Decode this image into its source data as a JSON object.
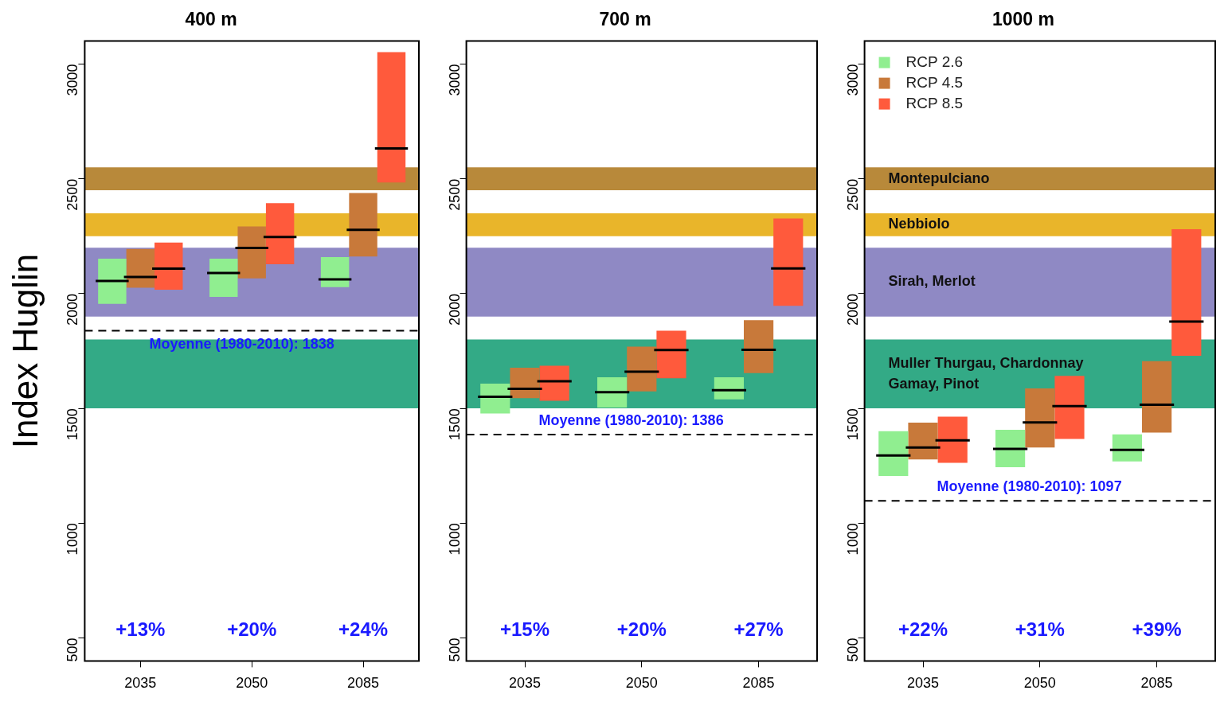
{
  "chart_data": [
    {
      "type": "box",
      "title": "400 m",
      "ylabel": "Index Huglin",
      "categories": [
        "2035",
        "2050",
        "2085"
      ],
      "series": [
        {
          "color": "#90ee90",
          "boxes": [
            {
              "low": 1955,
              "q1": 1955,
              "median": 2055,
              "q3": 2152,
              "high": 2152
            },
            {
              "low": 1986,
              "q1": 1986,
              "median": 2090,
              "q3": 2152,
              "high": 2152
            },
            {
              "low": 2028,
              "q1": 2028,
              "median": 2062,
              "q3": 2159,
              "high": 2159
            }
          ]
        },
        {
          "color": "#c8793a",
          "boxes": [
            {
              "low": 2026,
              "q1": 2026,
              "median": 2072,
              "q3": 2195,
              "high": 2195
            },
            {
              "low": 2066,
              "q1": 2066,
              "median": 2199,
              "q3": 2293,
              "high": 2293
            },
            {
              "low": 2162,
              "q1": 2162,
              "median": 2278,
              "q3": 2438,
              "high": 2438
            }
          ]
        },
        {
          "color": "#ff5a3c",
          "boxes": [
            {
              "low": 2017,
              "q1": 2017,
              "median": 2109,
              "q3": 2222,
              "high": 2222
            },
            {
              "low": 2128,
              "q1": 2128,
              "median": 2247,
              "q3": 2394,
              "high": 2394
            },
            {
              "low": 2484,
              "q1": 2484,
              "median": 2632,
              "q3": 3052,
              "high": 3052
            }
          ]
        }
      ],
      "ylim": [
        400,
        3100
      ],
      "yticks": [
        500,
        1000,
        1500,
        2000,
        2500,
        3000
      ],
      "bands": [
        {
          "axis": "y",
          "from": 2450,
          "to": 2550,
          "color": "#b8893a"
        },
        {
          "axis": "y",
          "from": 2250,
          "to": 2350,
          "color": "#e9b52a"
        },
        {
          "axis": "y",
          "from": 1900,
          "to": 2200,
          "color": "#8f89c4"
        },
        {
          "axis": "y",
          "from": 1500,
          "to": 1800,
          "color": "#33aa86"
        }
      ],
      "ref_lines": [
        {
          "axis": "y",
          "value": 1838,
          "label": "Moyenne (1980-2010): 1838",
          "color": "#000000",
          "line_style": "dashed"
        }
      ],
      "annotations": [
        "+13%",
        "+20%",
        "+24%"
      ]
    },
    {
      "type": "box",
      "title": "700 m",
      "categories": [
        "2035",
        "2050",
        "2085"
      ],
      "series": [
        {
          "color": "#90ee90",
          "boxes": [
            {
              "low": 1478,
              "q1": 1478,
              "median": 1551,
              "q3": 1608,
              "high": 1608
            },
            {
              "low": 1504,
              "q1": 1504,
              "median": 1571,
              "q3": 1636,
              "high": 1636
            },
            {
              "low": 1539,
              "q1": 1539,
              "median": 1579,
              "q3": 1636,
              "high": 1636
            }
          ]
        },
        {
          "color": "#c8793a",
          "boxes": [
            {
              "low": 1545,
              "q1": 1545,
              "median": 1585,
              "q3": 1677,
              "high": 1677
            },
            {
              "low": 1574,
              "q1": 1574,
              "median": 1660,
              "q3": 1769,
              "high": 1769
            },
            {
              "low": 1654,
              "q1": 1654,
              "median": 1755,
              "q3": 1884,
              "high": 1884
            }
          ]
        },
        {
          "color": "#ff5a3c",
          "boxes": [
            {
              "low": 1533,
              "q1": 1533,
              "median": 1618,
              "q3": 1686,
              "high": 1686
            },
            {
              "low": 1631,
              "q1": 1631,
              "median": 1754,
              "q3": 1838,
              "high": 1838
            },
            {
              "low": 1947,
              "q1": 1947,
              "median": 2110,
              "q3": 2327,
              "high": 2327
            }
          ]
        }
      ],
      "ylim": [
        400,
        3100
      ],
      "yticks": [
        500,
        1000,
        1500,
        2000,
        2500,
        3000
      ],
      "bands": [
        {
          "axis": "y",
          "from": 2450,
          "to": 2550,
          "color": "#b8893a"
        },
        {
          "axis": "y",
          "from": 2250,
          "to": 2350,
          "color": "#e9b52a"
        },
        {
          "axis": "y",
          "from": 1900,
          "to": 2200,
          "color": "#8f89c4"
        },
        {
          "axis": "y",
          "from": 1500,
          "to": 1800,
          "color": "#33aa86"
        }
      ],
      "ref_lines": [
        {
          "axis": "y",
          "value": 1386,
          "label": "Moyenne (1980-2010): 1386",
          "color": "#000000",
          "line_style": "dashed"
        }
      ],
      "annotations": [
        "+15%",
        "+20%",
        "+27%"
      ]
    },
    {
      "type": "box",
      "title": "1000 m",
      "categories": [
        "2035",
        "2050",
        "2085"
      ],
      "series": [
        {
          "name": "RCP 2.6",
          "color": "#90ee90",
          "boxes": [
            {
              "low": 1206,
              "q1": 1206,
              "median": 1295,
              "q3": 1401,
              "high": 1401
            },
            {
              "low": 1244,
              "q1": 1244,
              "median": 1324,
              "q3": 1407,
              "high": 1407
            },
            {
              "low": 1269,
              "q1": 1269,
              "median": 1319,
              "q3": 1387,
              "high": 1387
            }
          ]
        },
        {
          "name": "RCP 4.5",
          "color": "#c8793a",
          "boxes": [
            {
              "low": 1278,
              "q1": 1278,
              "median": 1330,
              "q3": 1438,
              "high": 1438
            },
            {
              "low": 1330,
              "q1": 1330,
              "median": 1439,
              "q3": 1587,
              "high": 1587
            },
            {
              "low": 1395,
              "q1": 1395,
              "median": 1516,
              "q3": 1706,
              "high": 1706
            }
          ]
        },
        {
          "name": "RCP 8.5",
          "color": "#ff5a3c",
          "boxes": [
            {
              "low": 1263,
              "q1": 1263,
              "median": 1361,
              "q3": 1464,
              "high": 1464
            },
            {
              "low": 1367,
              "q1": 1367,
              "median": 1510,
              "q3": 1642,
              "high": 1642
            },
            {
              "low": 1729,
              "q1": 1729,
              "median": 1878,
              "q3": 2280,
              "high": 2280
            }
          ]
        }
      ],
      "ylim": [
        400,
        3100
      ],
      "yticks": [
        500,
        1000,
        1500,
        2000,
        2500,
        3000
      ],
      "bands": [
        {
          "axis": "y",
          "from": 2450,
          "to": 2550,
          "color": "#b8893a",
          "label": "Montepulciano"
        },
        {
          "axis": "y",
          "from": 2250,
          "to": 2350,
          "color": "#e9b52a",
          "label": "Nebbiolo"
        },
        {
          "axis": "y",
          "from": 1900,
          "to": 2200,
          "color": "#8f89c4",
          "label": "Sirah, Merlot"
        },
        {
          "axis": "y",
          "from": 1500,
          "to": 1800,
          "color": "#33aa86",
          "label": "Muller Thurgau, Chardonnay\nGamay, Pinot"
        }
      ],
      "ref_lines": [
        {
          "axis": "y",
          "value": 1097,
          "label": "Moyenne (1980-2010): 1097",
          "color": "#000000",
          "line_style": "dashed"
        }
      ],
      "annotations": [
        "+22%",
        "+31%",
        "+39%"
      ],
      "legend": "top left"
    }
  ]
}
